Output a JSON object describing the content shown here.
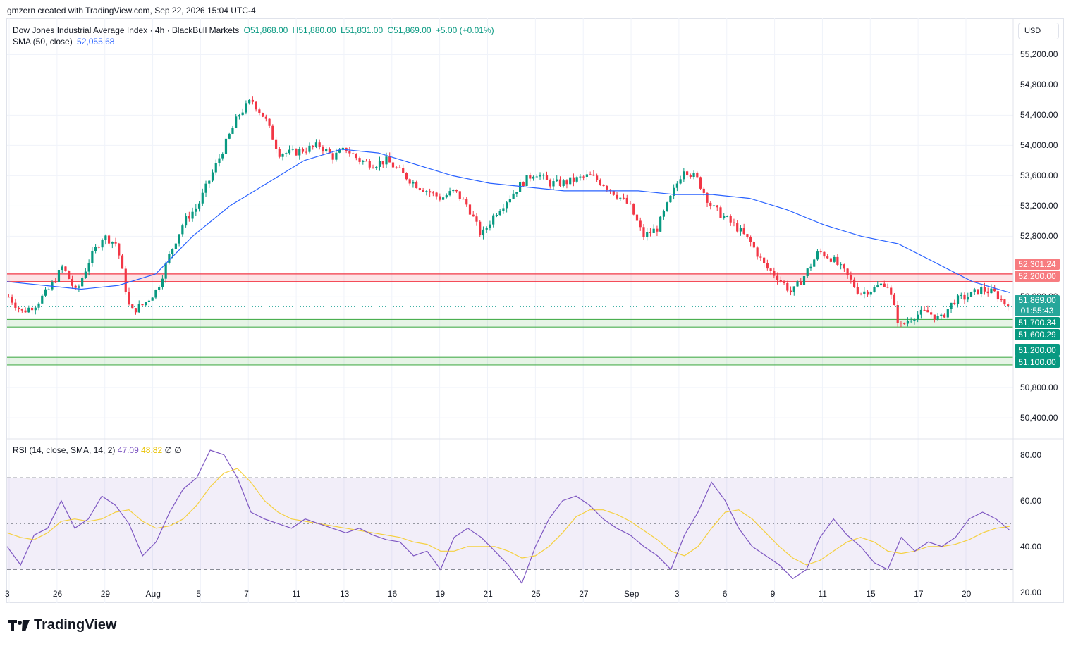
{
  "header": {
    "created_by": "gmzern created with TradingView.com, Sep 22, 2026 15:04 UTC-4"
  },
  "legend": {
    "symbol": "Dow Jones Industrial Average Index · 4h · BlackBull Markets",
    "open": "O51,868.00",
    "high": "H51,880.00",
    "low": "L51,831.00",
    "close": "C51,869.00",
    "change": "+5.00 (+0.01%)",
    "sma_label": "SMA (50, close)",
    "sma_value": "52,055.68"
  },
  "rsi_legend": {
    "label": "RSI (14, close, SMA, 14, 2)",
    "rsi_value": "47.09",
    "rsi_ma_value": "48.82",
    "extra1": "∅",
    "extra2": "∅"
  },
  "currency": "USD",
  "price_axis_labels": [
    "55,200.00",
    "54,800.00",
    "54,400.00",
    "54,000.00",
    "53,600.00",
    "53,200.00",
    "52,800.00",
    "52,000.00",
    "50,800.00",
    "50,400.00"
  ],
  "rsi_axis_labels": [
    "80.00",
    "60.00",
    "40.00",
    "20.00"
  ],
  "tags": {
    "zone_red_top": "52,301.24",
    "zone_red_bottom": "52,200.00",
    "current_price": "51,869.00",
    "countdown": "01:55:43",
    "zone_green1_top": "51,700.34",
    "zone_green1_bottom": "51,600.29",
    "zone_green2_top": "51,200.00",
    "zone_green2_bottom": "51,100.00"
  },
  "x_axis_labels": [
    "3",
    "26",
    "29",
    "Aug",
    "5",
    "7",
    "11",
    "13",
    "16",
    "19",
    "21",
    "25",
    "27",
    "Sep",
    "3",
    "6",
    "9",
    "11",
    "15",
    "17",
    "20"
  ],
  "branding": "TradingView",
  "colors": {
    "up": "#089981",
    "down": "#f23645",
    "sma": "#2962ff",
    "rsi": "#7e57c2",
    "rsi_ma": "#f5d040",
    "resistance_zone": "#f23645",
    "support_zone": "#4caf50"
  },
  "chart_data": {
    "type": "candlestick",
    "timeframe": "4h",
    "ylim": [
      50150,
      55400
    ],
    "zones": [
      {
        "kind": "resistance",
        "from": 52200.0,
        "to": 52301.24
      },
      {
        "kind": "support",
        "from": 51600.29,
        "to": 51700.34
      },
      {
        "kind": "support",
        "from": 51100.0,
        "to": 51200.0
      }
    ],
    "last_close": 51869.0,
    "sma50_last": 52055.68,
    "close_path": [
      52000,
      51800,
      51900,
      52100,
      52400,
      52050,
      52500,
      52800,
      52700,
      51800,
      51900,
      52100,
      52600,
      53000,
      53200,
      53600,
      54000,
      54400,
      54600,
      54350,
      53900,
      53900,
      53950,
      54000,
      53850,
      53950,
      53800,
      53750,
      53800,
      53650,
      53500,
      53400,
      53300,
      53400,
      53200,
      52800,
      53100,
      53300,
      53500,
      53650,
      53500,
      53500,
      53550,
      53600,
      53500,
      53350,
      53200,
      52800,
      52900,
      53300,
      53700,
      53550,
      53200,
      53050,
      52900,
      52700,
      52400,
      52250,
      52050,
      52300,
      52600,
      52500,
      52300,
      52050,
      52100,
      52200,
      51600,
      51750,
      51800,
      51700,
      51950,
      52000,
      52100,
      52050,
      51869
    ],
    "sma_path": [
      52200,
      52150,
      52100,
      52150,
      52300,
      52800,
      53200,
      53500,
      53800,
      53950,
      53900,
      53750,
      53600,
      53500,
      53450,
      53400,
      53400,
      53400,
      53350,
      53350,
      53300,
      53150,
      52950,
      52800,
      52700,
      52450,
      52200,
      52055.68
    ],
    "rsi": {
      "levels": [
        70,
        50,
        30
      ],
      "ylim": [
        16,
        86
      ],
      "values": [
        40,
        32,
        45,
        48,
        60,
        48,
        52,
        62,
        58,
        50,
        36,
        42,
        55,
        65,
        70,
        82,
        80,
        70,
        55,
        52,
        50,
        48,
        52,
        50,
        48,
        46,
        48,
        45,
        43,
        42,
        36,
        38,
        30,
        44,
        48,
        44,
        38,
        32,
        24,
        40,
        52,
        60,
        62,
        58,
        52,
        48,
        45,
        40,
        36,
        30,
        45,
        55,
        68,
        60,
        48,
        40,
        36,
        32,
        26,
        30,
        44,
        52,
        45,
        40,
        33,
        30,
        44,
        38,
        42,
        40,
        44,
        52,
        55,
        52,
        47.09
      ],
      "ma_values": [
        46,
        44,
        43,
        46,
        51,
        52,
        51,
        52,
        55,
        56,
        51,
        48,
        49,
        52,
        58,
        66,
        72,
        74,
        68,
        60,
        55,
        52,
        51,
        50,
        49,
        48,
        47,
        46,
        45,
        44,
        42,
        41,
        38,
        38,
        40,
        40,
        40,
        38,
        35,
        36,
        40,
        46,
        53,
        56,
        56,
        54,
        51,
        47,
        43,
        38,
        36,
        40,
        48,
        55,
        56,
        52,
        46,
        40,
        35,
        32,
        34,
        38,
        42,
        44,
        42,
        38,
        37,
        38,
        40,
        40,
        41,
        43,
        46,
        48,
        48.82
      ]
    }
  }
}
